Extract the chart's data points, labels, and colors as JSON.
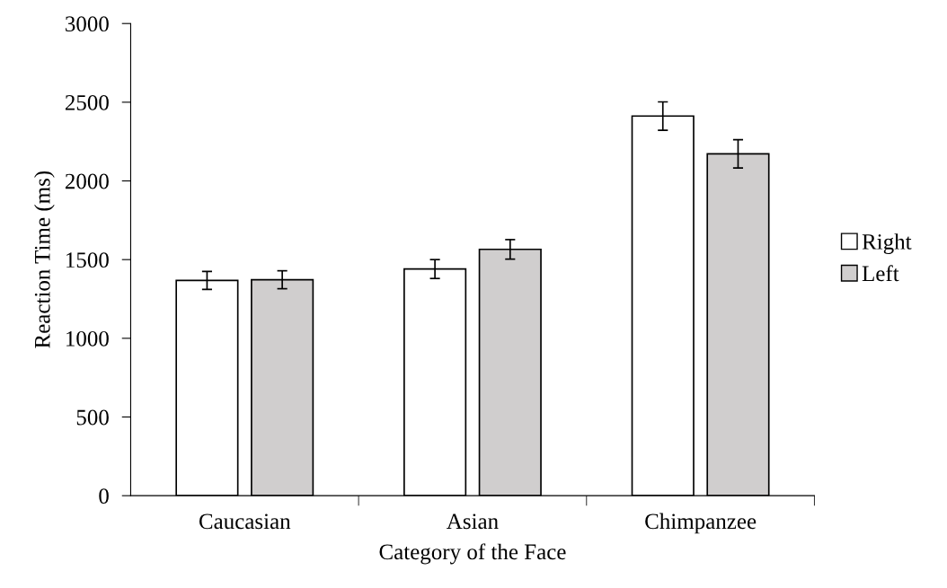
{
  "chart_data": {
    "type": "bar",
    "xlabel": "Category of the Face",
    "ylabel": "Reaction Time (ms)",
    "categories": [
      "Caucasian",
      "Asian",
      "Chimpanzee"
    ],
    "series": [
      {
        "name": "Right",
        "color": "#ffffff",
        "values": [
          1368,
          1440,
          2412
        ],
        "errors": [
          57,
          60,
          90
        ]
      },
      {
        "name": "Left",
        "color": "#d0cece",
        "values": [
          1372,
          1565,
          2172
        ],
        "errors": [
          57,
          62,
          90
        ]
      }
    ],
    "ylim": [
      0,
      3000
    ],
    "yticks": [
      0,
      500,
      1000,
      1500,
      2000,
      2500,
      3000
    ],
    "grid": false,
    "legend": "right"
  }
}
